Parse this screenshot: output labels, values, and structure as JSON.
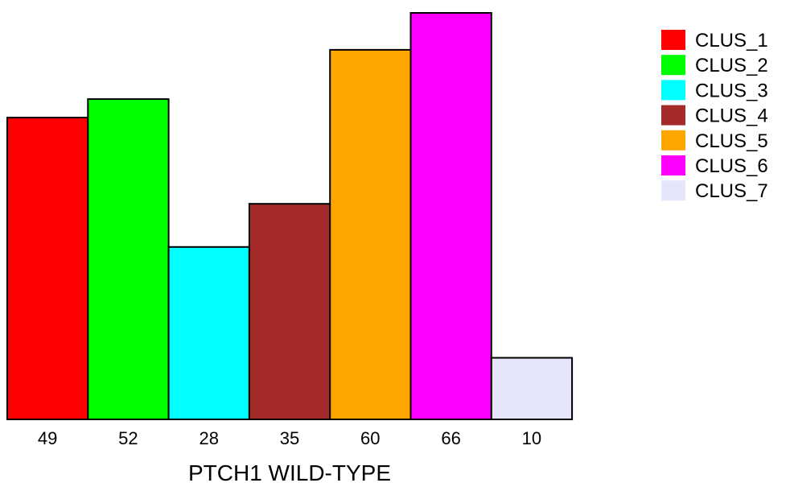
{
  "chart_data": {
    "type": "bar",
    "categories": [
      "CLUS_1",
      "CLUS_2",
      "CLUS_3",
      "CLUS_4",
      "CLUS_5",
      "CLUS_6",
      "CLUS_7"
    ],
    "values": [
      49,
      52,
      28,
      35,
      60,
      66,
      10
    ],
    "tick_labels": [
      "49",
      "52",
      "28",
      "35",
      "60",
      "66",
      "10"
    ],
    "colors": [
      "#ff0000",
      "#00ff00",
      "#00ffff",
      "#a52a2a",
      "#ffa500",
      "#ff00ff",
      "#e6e6fa"
    ],
    "xlabel": "PTCH1 WILD-TYPE",
    "ylabel": "",
    "ylim": [
      0,
      66
    ],
    "grid": false,
    "legend": {
      "placement": "top-right",
      "entries": [
        "CLUS_1",
        "CLUS_2",
        "CLUS_3",
        "CLUS_4",
        "CLUS_5",
        "CLUS_6",
        "CLUS_7"
      ]
    }
  }
}
